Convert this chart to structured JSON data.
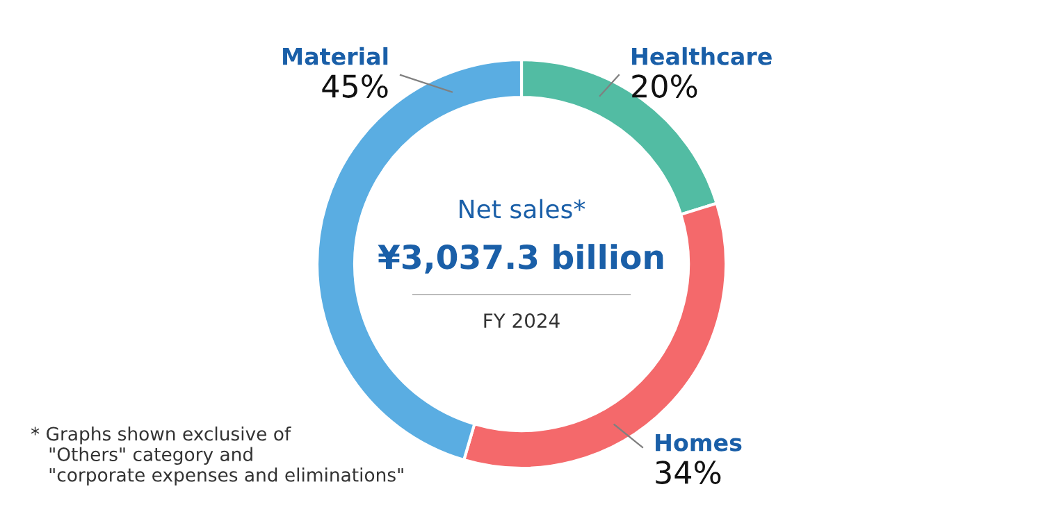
{
  "chart_data": {
    "type": "donut",
    "title": "Net sales*",
    "subtitle": "¥3,037.3 billion",
    "categories": [
      "Healthcare",
      "Homes",
      "Material"
    ],
    "values": [
      20,
      34,
      45
    ],
    "value_labels": [
      "20%",
      "34%",
      "45%"
    ],
    "colors": [
      "#52bca3",
      "#f4696b",
      "#5aade2"
    ],
    "annotations": [
      "FY 2024",
      "* Graphs shown exclusive of\n   \"Others\" category and\n   \"corporate expenses and eliminations\""
    ],
    "legend": false
  }
}
